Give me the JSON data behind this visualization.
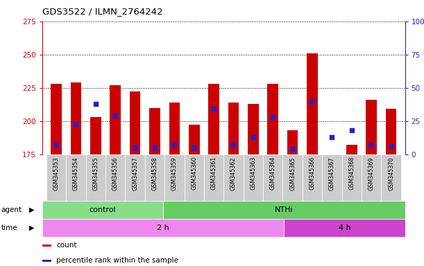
{
  "title": "GDS3522 / ILMN_2764242",
  "samples": [
    "GSM345353",
    "GSM345354",
    "GSM345355",
    "GSM345356",
    "GSM345357",
    "GSM345358",
    "GSM345359",
    "GSM345360",
    "GSM345361",
    "GSM345362",
    "GSM345363",
    "GSM345364",
    "GSM345365",
    "GSM345366",
    "GSM345367",
    "GSM345368",
    "GSM345369",
    "GSM345370"
  ],
  "counts": [
    228,
    229,
    203,
    227,
    222,
    210,
    214,
    197,
    228,
    214,
    213,
    228,
    193,
    251,
    175,
    182,
    216,
    209
  ],
  "count_base": 175,
  "percentile_y": [
    182,
    198,
    213,
    204,
    180,
    180,
    182,
    180,
    209,
    182,
    188,
    203,
    179,
    215,
    188,
    193,
    182,
    181
  ],
  "ylim_left": [
    175,
    275
  ],
  "yticks_left": [
    175,
    200,
    225,
    250,
    275
  ],
  "ylim_right": [
    0,
    100
  ],
  "yticks_right": [
    0,
    25,
    50,
    75,
    100
  ],
  "agent_groups": [
    {
      "label": "control",
      "start": 0,
      "end": 6,
      "color": "#88DD88"
    },
    {
      "label": "NTHi",
      "start": 6,
      "end": 18,
      "color": "#66CC66"
    }
  ],
  "time_groups": [
    {
      "label": "2 h",
      "start": 0,
      "end": 12,
      "color": "#EE88EE"
    },
    {
      "label": "4 h",
      "start": 12,
      "end": 18,
      "color": "#CC44CC"
    }
  ],
  "bar_color": "#CC0000",
  "dot_color": "#2222CC",
  "left_axis_color": "#CC0000",
  "right_axis_color": "#2222CC",
  "xtick_bg_color": "#CCCCCC",
  "plot_bg_color": "#FFFFFF",
  "legend_items": [
    {
      "label": "count",
      "color": "#CC0000"
    },
    {
      "label": "percentile rank within the sample",
      "color": "#2222CC"
    }
  ]
}
